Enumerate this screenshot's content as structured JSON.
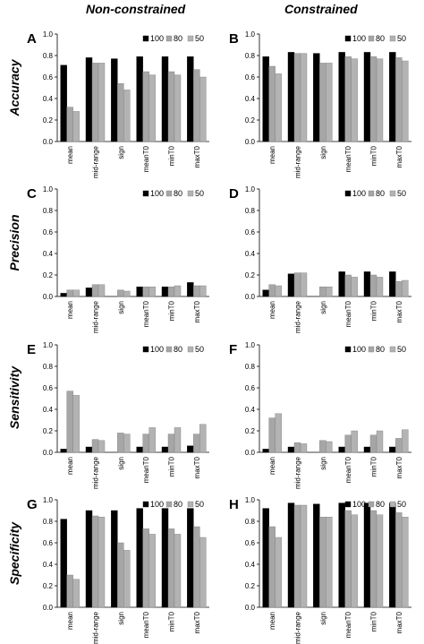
{
  "column_titles": [
    "Non-constrained",
    "Constrained"
  ],
  "row_titles": [
    "Accuracy",
    "Precision",
    "Sensitivity",
    "Specificity"
  ],
  "colors": {
    "s100": "#000000",
    "s80": "#a6a6a6",
    "s50": "#b3b3b3"
  },
  "chart_data": [
    {
      "type": "bar",
      "panel": "A",
      "ylabel": "Accuracy",
      "column": "Non-constrained",
      "categories": [
        "mean",
        "mid-range",
        "sign",
        "meanT0",
        "minT0",
        "maxT0"
      ],
      "ylim": [
        0,
        1.0
      ],
      "yticks": [
        "0.0",
        "0.2",
        "0.4",
        "0.6",
        "0.8",
        "1.0"
      ],
      "legend": "top-right",
      "series": [
        {
          "name": "100",
          "values": [
            0.71,
            0.78,
            0.77,
            0.79,
            0.79,
            0.79
          ]
        },
        {
          "name": "80",
          "values": [
            0.32,
            0.73,
            0.54,
            0.65,
            0.65,
            0.67
          ]
        },
        {
          "name": "50",
          "values": [
            0.28,
            0.73,
            0.48,
            0.62,
            0.62,
            0.6
          ]
        }
      ]
    },
    {
      "type": "bar",
      "panel": "B",
      "ylabel": "Accuracy",
      "column": "Constrained",
      "categories": [
        "mean",
        "mid-range",
        "sign",
        "meanT0",
        "minT0",
        "maxT0"
      ],
      "ylim": [
        0,
        1.0
      ],
      "yticks": [
        "0.0",
        "0.2",
        "0.4",
        "0.6",
        "0.8",
        "1.0"
      ],
      "legend": "top-right",
      "series": [
        {
          "name": "100",
          "values": [
            0.79,
            0.83,
            0.82,
            0.83,
            0.83,
            0.83
          ]
        },
        {
          "name": "80",
          "values": [
            0.7,
            0.82,
            0.73,
            0.79,
            0.79,
            0.78
          ]
        },
        {
          "name": "50",
          "values": [
            0.63,
            0.82,
            0.73,
            0.77,
            0.77,
            0.75
          ]
        }
      ]
    },
    {
      "type": "bar",
      "panel": "C",
      "ylabel": "Precision",
      "column": "Non-constrained",
      "categories": [
        "mean",
        "mid-range",
        "sign",
        "meanT0",
        "minT0",
        "maxT0"
      ],
      "ylim": [
        0,
        1.0
      ],
      "yticks": [
        "0.0",
        "0.2",
        "0.4",
        "0.6",
        "0.8",
        "1.0"
      ],
      "legend": "top-right",
      "series": [
        {
          "name": "100",
          "values": [
            0.03,
            0.08,
            0.0,
            0.09,
            0.09,
            0.13
          ]
        },
        {
          "name": "80",
          "values": [
            0.06,
            0.11,
            0.06,
            0.09,
            0.09,
            0.1
          ]
        },
        {
          "name": "50",
          "values": [
            0.06,
            0.11,
            0.05,
            0.09,
            0.1,
            0.1
          ]
        }
      ]
    },
    {
      "type": "bar",
      "panel": "D",
      "ylabel": "Precision",
      "column": "Constrained",
      "categories": [
        "mean",
        "mid-range",
        "sign",
        "meanT0",
        "minT0",
        "maxT0"
      ],
      "ylim": [
        0,
        1.0
      ],
      "yticks": [
        "0.0",
        "0.2",
        "0.4",
        "0.6",
        "0.8",
        "1.0"
      ],
      "legend": "top-right",
      "series": [
        {
          "name": "100",
          "values": [
            0.06,
            0.21,
            0.0,
            0.23,
            0.23,
            0.23
          ]
        },
        {
          "name": "80",
          "values": [
            0.11,
            0.22,
            0.09,
            0.2,
            0.2,
            0.14
          ]
        },
        {
          "name": "50",
          "values": [
            0.1,
            0.22,
            0.09,
            0.18,
            0.18,
            0.15
          ]
        }
      ]
    },
    {
      "type": "bar",
      "panel": "E",
      "ylabel": "Sensitivity",
      "column": "Non-constrained",
      "categories": [
        "mean",
        "mid-range",
        "sign",
        "meanT0",
        "minT0",
        "maxT0"
      ],
      "ylim": [
        0,
        1.0
      ],
      "yticks": [
        "0.0",
        "0.2",
        "0.4",
        "0.6",
        "0.8",
        "1.0"
      ],
      "legend": "top-right",
      "series": [
        {
          "name": "100",
          "values": [
            0.03,
            0.05,
            0.0,
            0.05,
            0.05,
            0.06
          ]
        },
        {
          "name": "80",
          "values": [
            0.57,
            0.12,
            0.18,
            0.17,
            0.17,
            0.17
          ]
        },
        {
          "name": "50",
          "values": [
            0.53,
            0.11,
            0.17,
            0.23,
            0.23,
            0.26
          ]
        }
      ]
    },
    {
      "type": "bar",
      "panel": "F",
      "ylabel": "Sensitivity",
      "column": "Constrained",
      "categories": [
        "mean",
        "mid-range",
        "sign",
        "meanT0",
        "minT0",
        "maxT0"
      ],
      "ylim": [
        0,
        1.0
      ],
      "yticks": [
        "0.0",
        "0.2",
        "0.4",
        "0.6",
        "0.8",
        "1.0"
      ],
      "legend": "top-right",
      "series": [
        {
          "name": "100",
          "values": [
            0.03,
            0.05,
            0.0,
            0.05,
            0.05,
            0.05
          ]
        },
        {
          "name": "80",
          "values": [
            0.32,
            0.09,
            0.11,
            0.16,
            0.16,
            0.13
          ]
        },
        {
          "name": "50",
          "values": [
            0.36,
            0.08,
            0.1,
            0.2,
            0.2,
            0.21
          ]
        }
      ]
    },
    {
      "type": "bar",
      "panel": "G",
      "ylabel": "Specificity",
      "column": "Non-constrained",
      "categories": [
        "mean",
        "mid-range",
        "sign",
        "meanT0",
        "minT0",
        "maxT0"
      ],
      "ylim": [
        0,
        1.0
      ],
      "yticks": [
        "0.0",
        "0.2",
        "0.4",
        "0.6",
        "0.8",
        "1.0"
      ],
      "legend": "top-right",
      "series": [
        {
          "name": "100",
          "values": [
            0.82,
            0.9,
            0.9,
            0.92,
            0.92,
            0.92
          ]
        },
        {
          "name": "80",
          "values": [
            0.3,
            0.85,
            0.6,
            0.73,
            0.73,
            0.75
          ]
        },
        {
          "name": "50",
          "values": [
            0.26,
            0.84,
            0.53,
            0.68,
            0.68,
            0.65
          ]
        }
      ]
    },
    {
      "type": "bar",
      "panel": "H",
      "ylabel": "Specificity",
      "column": "Constrained",
      "categories": [
        "mean",
        "mid-range",
        "sign",
        "meanT0",
        "minT0",
        "maxT0"
      ],
      "ylim": [
        0,
        1.0
      ],
      "yticks": [
        "0.0",
        "0.2",
        "0.4",
        "0.6",
        "0.8",
        "1.0"
      ],
      "legend": "top-right",
      "series": [
        {
          "name": "100",
          "values": [
            0.92,
            0.97,
            0.96,
            0.97,
            0.97,
            0.97
          ]
        },
        {
          "name": "80",
          "values": [
            0.75,
            0.95,
            0.84,
            0.9,
            0.9,
            0.88
          ]
        },
        {
          "name": "50",
          "values": [
            0.65,
            0.95,
            0.84,
            0.86,
            0.86,
            0.84
          ]
        }
      ]
    }
  ]
}
